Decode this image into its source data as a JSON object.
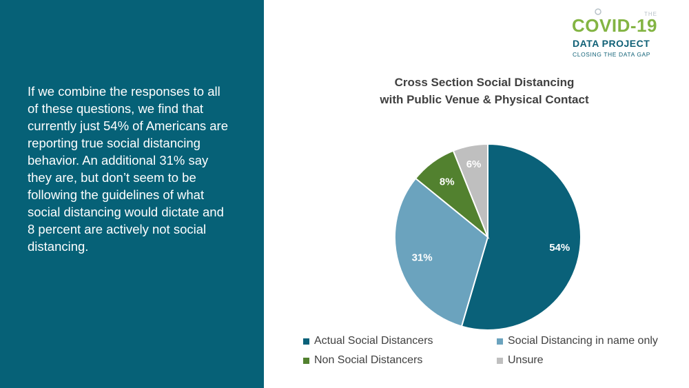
{
  "left_panel": {
    "text": "If we combine the responses to all of these questions, we find that currently just 54% of Americans are reporting true social distancing behavior. An additional 31% say they are, but don’t seem to be following the guidelines of what social distancing would dictate and 8 percent are actively not social distancing."
  },
  "logo": {
    "prefix": "THE",
    "name": "COVID-19",
    "subname": "DATA PROJECT",
    "tagline": "CLOSING THE DATA GAP",
    "colors": {
      "green": "#83b443",
      "teal": "#0f6076"
    }
  },
  "chart_data": {
    "type": "pie",
    "title_lines": [
      "Cross Section Social Distancing",
      "with Public Venue & Physical Contact"
    ],
    "categories": [
      "Actual Social Distancers",
      "Social Distancing in name only",
      "Non Social Distancers",
      "Unsure"
    ],
    "values": [
      54,
      31,
      8,
      6
    ],
    "data_labels": [
      "54%",
      "31%",
      "8%",
      "6%"
    ],
    "colors": [
      "#0a6179",
      "#6ba3be",
      "#52812f",
      "#bfbfbf"
    ],
    "label_colors": [
      "#ffffff",
      "#ffffff",
      "#ffffff",
      "#ffffff"
    ],
    "start_angle_deg": 0,
    "direction": "clockwise",
    "legend_position": "bottom"
  }
}
